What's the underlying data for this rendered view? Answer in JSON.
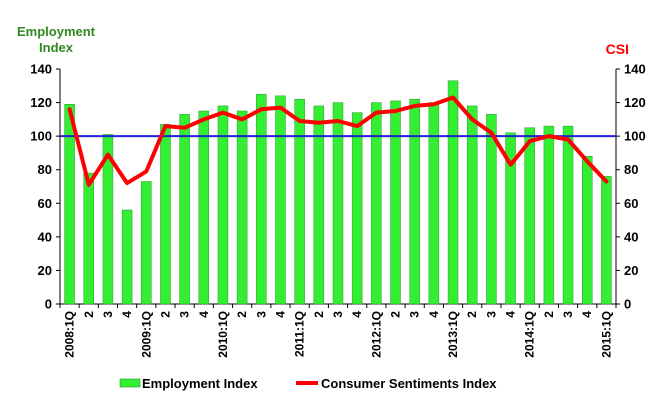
{
  "chart_data": {
    "type": "bar",
    "left_axis_title": [
      "Employment",
      "Index"
    ],
    "right_axis_title": "CSI",
    "ylim": [
      0,
      140
    ],
    "yticks": [
      0,
      20,
      40,
      60,
      80,
      100,
      120,
      140
    ],
    "categories": [
      "2008:1Q",
      "2",
      "3",
      "4",
      "2009:1Q",
      "2",
      "3",
      "4",
      "2010:1Q",
      "2",
      "3",
      "4",
      "2011:1Q",
      "2",
      "3",
      "4",
      "2012:1Q",
      "2",
      "3",
      "4",
      "2013:1Q",
      "2",
      "3",
      "4",
      "2014:1Q",
      "2",
      "3",
      "4",
      "2015:1Q"
    ],
    "reference_line": {
      "value": 100,
      "color": "#1f1fd6"
    },
    "series": [
      {
        "name": "Employment Index",
        "kind": "bar",
        "color": "#33ee33",
        "values": [
          119,
          78,
          101,
          56,
          73,
          107,
          113,
          115,
          118,
          115,
          125,
          124,
          122,
          118,
          120,
          114,
          120,
          121,
          122,
          120,
          133,
          118,
          113,
          102,
          105,
          106,
          106,
          88,
          76
        ]
      },
      {
        "name": "Consumer Sentiments Index",
        "kind": "line",
        "color": "#ff0000",
        "values": [
          116,
          71,
          89,
          72,
          79,
          106,
          105,
          110,
          114,
          110,
          116,
          117,
          109,
          108,
          109,
          106,
          114,
          115,
          118,
          119,
          123,
          110,
          102,
          83,
          97,
          100,
          98,
          85,
          73
        ]
      }
    ],
    "legend": {
      "position": "bottom"
    }
  }
}
